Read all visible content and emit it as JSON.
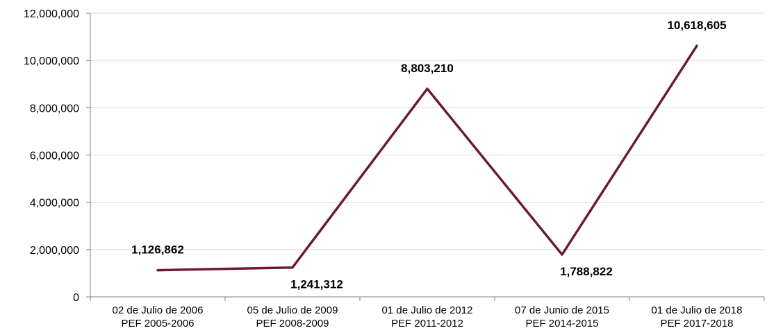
{
  "chart_data": {
    "type": "line",
    "categories": [
      [
        "02 de Julio de 2006",
        "PEF 2005-2006"
      ],
      [
        "05 de Julio de 2009",
        "PEF 2008-2009"
      ],
      [
        "01 de Julio de 2012",
        "PEF 2011-2012"
      ],
      [
        "07 de Junio de 2015",
        "PEF 2014-2015"
      ],
      [
        "01 de Julio de 2018",
        "PEF 2017-2018"
      ]
    ],
    "values": [
      1126862,
      1241312,
      8803210,
      1788822,
      10618605
    ],
    "data_labels": [
      "1,126,862",
      "1,241,312",
      "8,803,210",
      "1,788,822",
      "10,618,605"
    ],
    "data_label_positions": [
      "above",
      "below",
      "above",
      "below",
      "above"
    ],
    "ylim": [
      0,
      12000000
    ],
    "yticks": [
      0,
      2000000,
      4000000,
      6000000,
      8000000,
      10000000,
      12000000
    ],
    "ytick_labels": [
      "0",
      "2,000,000",
      "4,000,000",
      "6,000,000",
      "8,000,000",
      "10,000,000",
      "12,000,000"
    ],
    "grid": "horizontal",
    "title": "",
    "xlabel": "",
    "ylabel": "",
    "colors": {
      "line": "#6b1a36",
      "grid": "#d9d9d9",
      "axis": "#808080"
    }
  }
}
